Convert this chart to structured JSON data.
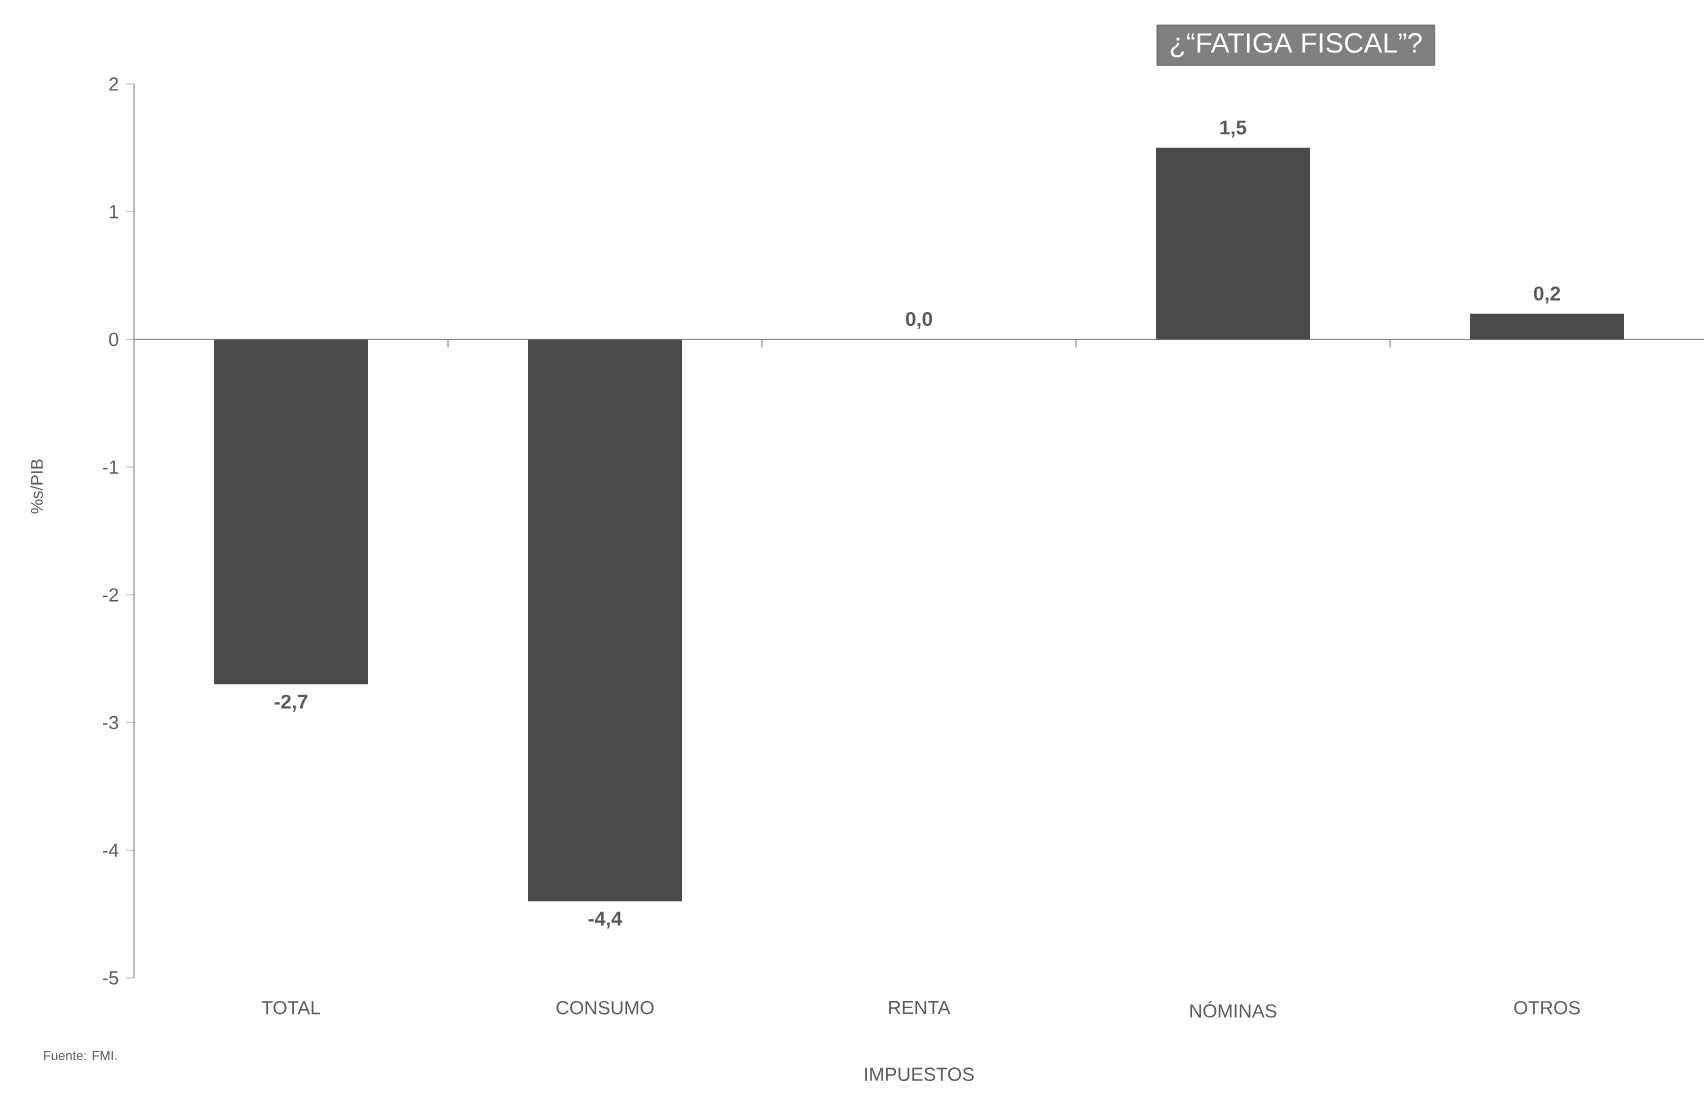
{
  "chart_data": {
    "type": "bar",
    "title": "¿“FATIGA FISCAL”?",
    "categories": [
      "TOTAL",
      "CONSUMO",
      "RENTA",
      "NÓMINAS",
      "OTROS"
    ],
    "values": [
      -2.7,
      -4.4,
      0.0,
      1.5,
      0.2
    ],
    "value_labels": [
      "-2,7",
      "-4,4",
      "0,0",
      "1,5",
      "0,2"
    ],
    "color": "#4a4a4a",
    "ylim": [
      -5,
      2
    ],
    "yticks": [
      -5,
      -4,
      -3,
      -2,
      -1,
      0,
      1,
      2
    ],
    "xlabel": "IMPUESTOS",
    "ylabel": "%s/PIB",
    "annotations": [
      "Fuente: FMI."
    ]
  }
}
